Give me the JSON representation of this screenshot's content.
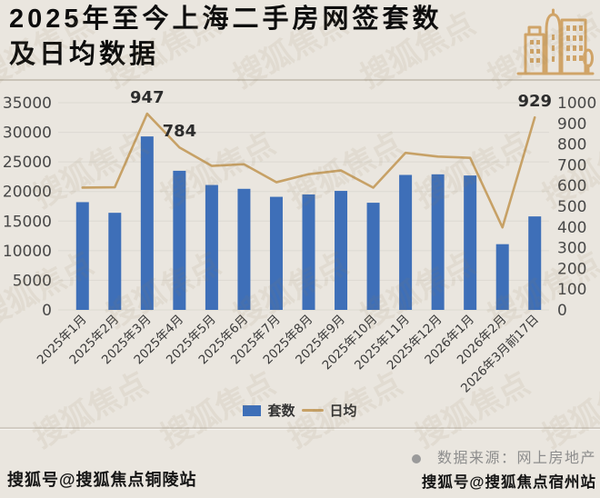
{
  "title": {
    "line1": "2025年至今上海二手房网签套数",
    "line2": "及日均数据"
  },
  "chart_data": {
    "type": "bar",
    "title": "2025年至今上海二手房网签套数及日均数据",
    "categories": [
      "2025年1月",
      "2025年2月",
      "2025年3月",
      "2025年4月",
      "2025年5月",
      "2025年6月",
      "2025年7月",
      "2025年8月",
      "2025年9月",
      "2025年10月",
      "2025年11月",
      "2025年12月",
      "2026年1月",
      "2026年2月",
      "2026年3月前17日"
    ],
    "series": [
      {
        "name": "套数",
        "type": "bar",
        "axis": "left",
        "values": [
          18200,
          16400,
          29300,
          23500,
          21100,
          20450,
          19100,
          19500,
          20100,
          18100,
          22800,
          22900,
          22700,
          11100,
          15790
        ]
      },
      {
        "name": "日均",
        "type": "line",
        "axis": "right",
        "values": [
          590,
          592,
          947,
          784,
          695,
          703,
          616,
          655,
          673,
          590,
          758,
          740,
          734,
          398,
          929
        ]
      }
    ],
    "left_axis": {
      "min": 0,
      "max": 35000,
      "step": 5000,
      "ticks": [
        "0",
        "5000",
        "10000",
        "15000",
        "20000",
        "25000",
        "30000",
        "35000"
      ]
    },
    "right_axis": {
      "min": 0,
      "max": 1000,
      "step": 100,
      "ticks": [
        "0",
        "100",
        "200",
        "300",
        "400",
        "500",
        "600",
        "700",
        "800",
        "900",
        "1000"
      ]
    },
    "annotations": [
      {
        "index": 2,
        "text": "947"
      },
      {
        "index": 3,
        "text": "784"
      },
      {
        "index": 14,
        "text": "929"
      }
    ],
    "grid": true,
    "legend_position": "bottom"
  },
  "legend": {
    "bar_label": "套数",
    "line_label": "日均"
  },
  "footer": {
    "left_stamp": "搜狐号@搜狐焦点铜陵站",
    "source": "数据来源：网上房地产",
    "right_stamp": "搜狐号@搜狐焦点宿州站"
  },
  "watermark": {
    "text": "搜狐焦点"
  },
  "colors": {
    "bar": "#3e6fb8",
    "line": "#c7a166",
    "accent": "#d0a468",
    "background": "#eae6df",
    "grid": "#dcd9d2"
  }
}
